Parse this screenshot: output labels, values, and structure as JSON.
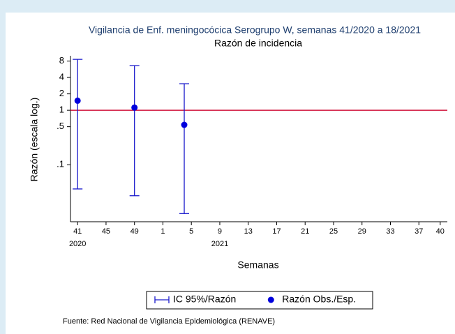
{
  "chart_data": {
    "type": "scatter",
    "title": "Vigilancia de Enf. meningocócica Serogrupo W, semanas 41/2020 a 18/2021",
    "subtitle": "Razón de incidencia",
    "x_label": "Semanas",
    "y_label": "Razón (escala log.)",
    "source": "Fuente: Red Nacional de Vigilancia Epidemiológica (RENAVE)",
    "x": [
      0,
      8,
      15
    ],
    "series": [
      {
        "name": "IC 95%/Razón",
        "color": "#1a1acc",
        "low": [
          0.036,
          0.027,
          0.0127
        ],
        "high": [
          8.6,
          6.6,
          3.07
        ]
      },
      {
        "name": "Razón Obs./Esp.",
        "color": "#0000dd",
        "values": [
          1.5,
          1.12,
          0.54
        ]
      }
    ],
    "reference_line": {
      "value": 1,
      "color": "#d0103a"
    },
    "y_log": true,
    "ylim": [
      0.009,
      10
    ],
    "yticks": [
      8,
      4,
      2,
      1,
      {
        "value": 0.5,
        "label": ".5"
      },
      {
        "value": 0.1,
        "label": ".1"
      }
    ],
    "xlim": [
      -1,
      52
    ],
    "xticks": [
      {
        "value": 0,
        "label": "41"
      },
      {
        "value": 4,
        "label": "45"
      },
      {
        "value": 8,
        "label": "49"
      },
      {
        "value": 12,
        "label": "1"
      },
      {
        "value": 16,
        "label": "5"
      },
      {
        "value": 20,
        "label": "9"
      },
      {
        "value": 24,
        "label": "13"
      },
      {
        "value": 28,
        "label": "17"
      },
      {
        "value": 32,
        "label": "21"
      },
      {
        "value": 36,
        "label": "25"
      },
      {
        "value": 40,
        "label": "29"
      },
      {
        "value": 44,
        "label": "33"
      },
      {
        "value": 48,
        "label": "37"
      },
      {
        "value": 51,
        "label": "40"
      }
    ],
    "year_labels": [
      {
        "value": 0,
        "label": "2020"
      },
      {
        "value": 20,
        "label": "2021"
      }
    ]
  }
}
